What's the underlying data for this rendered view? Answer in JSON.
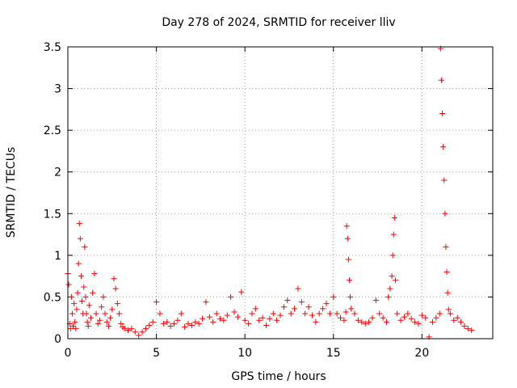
{
  "chart_data": {
    "type": "scatter",
    "title": "Day 278 of 2024, SRMTID for receiver lliv",
    "xlabel": "GPS time / hours",
    "ylabel": "SRMTID / TECUs",
    "xlim": [
      0,
      24
    ],
    "ylim": [
      0,
      3.5
    ],
    "xticks": [
      0,
      5,
      10,
      15,
      20
    ],
    "xtick_labels": [
      "0",
      "5",
      "10",
      "15",
      "20"
    ],
    "yticks": [
      0,
      0.5,
      1,
      1.5,
      2,
      2.5,
      3,
      3.5
    ],
    "ytick_labels": [
      "0",
      "0.5",
      "1",
      "1.5",
      "2",
      "2.5",
      "3",
      "3.5"
    ],
    "grid": true,
    "marker": "plus",
    "color": "#ff0000",
    "series": [
      {
        "x": [
          0.0,
          0.05,
          0.1,
          0.15,
          0.2,
          0.25,
          0.3,
          0.35,
          0.4,
          0.45,
          0.5,
          0.55,
          0.6,
          0.65,
          0.7,
          0.75,
          0.8,
          0.85,
          0.9,
          0.95,
          1.0,
          1.05,
          1.1,
          1.15,
          1.2,
          1.3,
          1.4,
          1.5,
          1.6,
          1.7,
          1.8,
          1.9,
          2.0,
          2.1,
          2.2,
          2.3,
          2.4,
          2.5,
          2.6,
          2.7,
          2.8,
          2.9,
          3.0,
          3.1,
          3.2,
          3.4,
          3.6,
          3.8,
          4.0,
          4.2,
          4.4,
          4.6,
          4.8,
          5.0,
          5.2,
          5.4,
          5.6,
          5.8,
          6.0,
          6.2,
          6.4,
          6.6,
          6.8,
          7.0,
          7.2,
          7.4,
          7.6,
          7.8,
          8.0,
          8.2,
          8.4,
          8.6,
          8.8,
          9.0,
          9.2,
          9.4,
          9.6,
          9.8,
          10.0,
          10.2,
          10.4,
          10.6,
          10.8,
          11.0,
          11.2,
          11.4,
          11.6,
          11.8,
          12.0,
          12.2,
          12.4,
          12.6,
          12.8,
          13.0,
          13.2,
          13.4,
          13.6,
          13.8,
          14.0,
          14.2,
          14.4,
          14.6,
          14.8,
          15.0,
          15.2,
          15.4,
          15.6,
          15.7,
          15.75,
          15.8,
          15.85,
          15.9,
          15.95,
          16.0,
          16.2,
          16.4,
          16.6,
          16.8,
          17.0,
          17.2,
          17.4,
          17.6,
          17.8,
          18.0,
          18.1,
          18.2,
          18.3,
          18.35,
          18.4,
          18.45,
          18.5,
          18.6,
          18.8,
          19.0,
          19.2,
          19.4,
          19.6,
          19.8,
          20.0,
          20.2,
          20.4,
          20.6,
          20.8,
          21.0,
          21.05,
          21.1,
          21.15,
          21.2,
          21.25,
          21.3,
          21.35,
          21.4,
          21.45,
          21.5,
          21.6,
          21.8,
          22.0,
          22.2,
          22.4,
          22.6,
          22.8
        ],
        "y": [
          0.78,
          0.65,
          0.18,
          0.12,
          0.5,
          0.3,
          0.15,
          0.42,
          0.2,
          0.12,
          0.35,
          0.55,
          0.9,
          1.38,
          1.2,
          0.75,
          0.45,
          0.3,
          0.62,
          1.1,
          0.5,
          0.3,
          0.2,
          0.15,
          0.4,
          0.25,
          0.55,
          0.78,
          0.3,
          0.18,
          0.22,
          0.38,
          0.5,
          0.3,
          0.2,
          0.15,
          0.25,
          0.35,
          0.72,
          0.6,
          0.42,
          0.3,
          0.18,
          0.14,
          0.12,
          0.1,
          0.12,
          0.08,
          0.04,
          0.08,
          0.12,
          0.16,
          0.2,
          0.44,
          0.3,
          0.18,
          0.2,
          0.15,
          0.18,
          0.22,
          0.3,
          0.14,
          0.18,
          0.16,
          0.2,
          0.18,
          0.24,
          0.44,
          0.26,
          0.2,
          0.3,
          0.24,
          0.22,
          0.28,
          0.5,
          0.32,
          0.26,
          0.56,
          0.22,
          0.18,
          0.3,
          0.36,
          0.22,
          0.25,
          0.16,
          0.24,
          0.3,
          0.22,
          0.28,
          0.38,
          0.46,
          0.3,
          0.36,
          0.6,
          0.44,
          0.3,
          0.38,
          0.28,
          0.2,
          0.3,
          0.36,
          0.42,
          0.3,
          0.5,
          0.3,
          0.25,
          0.22,
          0.32,
          1.35,
          1.2,
          0.95,
          0.7,
          0.5,
          0.36,
          0.3,
          0.22,
          0.2,
          0.18,
          0.2,
          0.25,
          0.46,
          0.3,
          0.25,
          0.2,
          0.5,
          0.6,
          0.75,
          1.0,
          1.25,
          1.45,
          0.7,
          0.3,
          0.22,
          0.26,
          0.3,
          0.24,
          0.2,
          0.18,
          0.28,
          0.25,
          0.02,
          0.2,
          0.25,
          0.3,
          3.48,
          3.1,
          2.7,
          2.3,
          1.9,
          1.5,
          1.1,
          0.8,
          0.55,
          0.35,
          0.3,
          0.22,
          0.25,
          0.2,
          0.15,
          0.12,
          0.1
        ]
      }
    ]
  }
}
